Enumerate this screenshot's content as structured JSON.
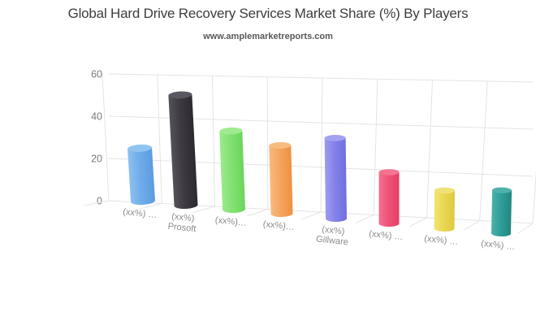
{
  "header": {
    "title": "Global Hard Drive Recovery Services Market Share (%) By Players",
    "subtitle": "www.amplemarketreports.com"
  },
  "chart_data": {
    "type": "bar",
    "style": "3d-cylinder",
    "title": "Global Hard Drive Recovery Services Market Share (%) By Players",
    "subtitle": "www.amplemarketreports.com",
    "categories": [
      "(xx%) …",
      "(xx%) Prosoft",
      "(xx%)…",
      "(xx%)…",
      "(xx%) Gillware",
      "(xx%) …",
      "(xx%) …",
      "(xx%) …"
    ],
    "category_display": [
      [
        "(xx%) …"
      ],
      [
        "(xx%)",
        "Prosoft"
      ],
      [
        "(xx%)…"
      ],
      [
        "(xx%)…"
      ],
      [
        "(xx%)",
        "Gillware"
      ],
      [
        "(xx%) …"
      ],
      [
        "(xx%) …"
      ],
      [
        "(xx%) …"
      ]
    ],
    "values": [
      20,
      46,
      31,
      26,
      31,
      18,
      12,
      14
    ],
    "ylim": [
      0,
      60
    ],
    "yticks": [
      0,
      20,
      40,
      60
    ],
    "xlabel": "",
    "ylabel": "",
    "grid": true,
    "legend": false,
    "bar_colors": [
      {
        "light": "#8CC1F0",
        "base": "#6FACEA",
        "dark": "#5B9CDF",
        "cap": "#92C4F1"
      },
      {
        "light": "#55525A",
        "base": "#3D3A41",
        "dark": "#2C2930",
        "cap": "#5A5761"
      },
      {
        "light": "#9BEA8C",
        "base": "#82E172",
        "dark": "#6CD45C",
        "cap": "#9EEB90"
      },
      {
        "light": "#F8BB7E",
        "base": "#F5A55E",
        "dark": "#EE9143",
        "cap": "#F8BC80"
      },
      {
        "light": "#9E9CF0",
        "base": "#8482E9",
        "dark": "#706EDF",
        "cap": "#A3A1F1"
      },
      {
        "light": "#F4708F",
        "base": "#F05379",
        "dark": "#E44067",
        "cap": "#F4748F"
      },
      {
        "light": "#F1E473",
        "base": "#E9D853",
        "dark": "#DEC93F",
        "cap": "#F0E276"
      },
      {
        "light": "#4BB1A9",
        "base": "#2F9F99",
        "dark": "#23867F",
        "cap": "#4FB2AA"
      }
    ],
    "grid_color": "#e4e4e4",
    "axis_text_color": "#7b7b7b",
    "label_text_color": "#8a8a8a"
  }
}
